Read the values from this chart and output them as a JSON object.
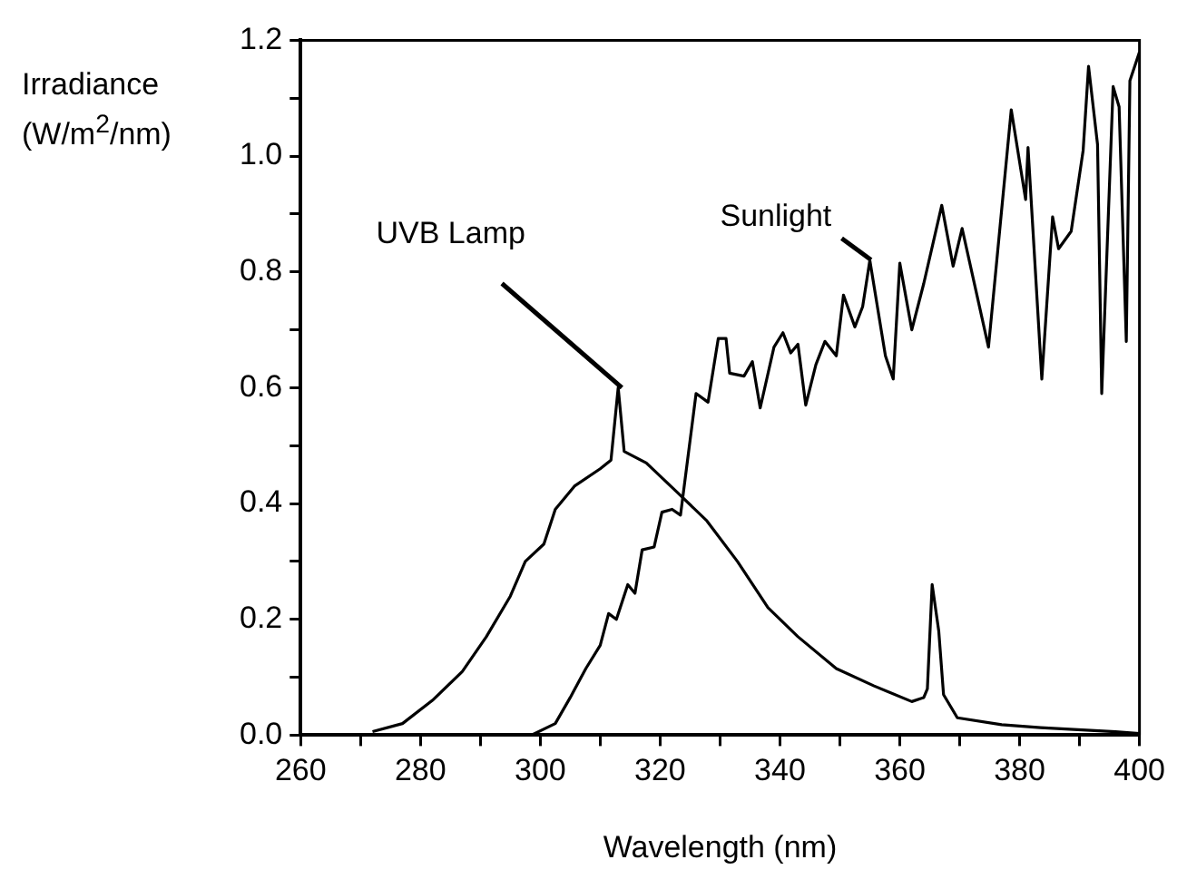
{
  "chart_data": {
    "type": "line",
    "xlabel": "Wavelength (nm)",
    "ylabel": "Irradiance (W/m$^{2}$/nm)",
    "xlim": [
      260,
      400
    ],
    "ylim": [
      0,
      1.2
    ],
    "xticks": [
      260,
      {
        "value": 270,
        "label": null
      },
      280,
      {
        "value": 290,
        "label": null
      },
      300,
      {
        "value": 310,
        "label": null
      },
      320,
      {
        "value": 330,
        "label": null
      },
      340,
      {
        "value": 350,
        "label": null
      },
      360,
      {
        "value": 370,
        "label": null
      },
      380,
      {
        "value": 390,
        "label": null
      },
      400
    ],
    "yticks": [
      {
        "value": 0,
        "label": "0.0"
      },
      {
        "value": 0.1,
        "label": null
      },
      0.2,
      {
        "value": 0.3,
        "label": null
      },
      0.4,
      {
        "value": 0.5,
        "label": null
      },
      0.6,
      {
        "value": 0.7,
        "label": null
      },
      0.8,
      {
        "value": 0.9,
        "label": null
      },
      {
        "value": 1,
        "label": "1.0"
      },
      {
        "value": 1.1,
        "label": null
      },
      1.2
    ],
    "grid": false,
    "legend": false,
    "marker": "none",
    "line_style": "solid",
    "series": [
      {
        "name": "UVB Lamp",
        "color": "#000000",
        "x": [
          272,
          277,
          282,
          287,
          291,
          295,
          297.5,
          300.6,
          302.5,
          305.7,
          310,
          311.8,
          313,
          314,
          317.7,
          322.8,
          327.8,
          332.9,
          338,
          343,
          349.4,
          355.7,
          362,
          364,
          364.6,
          365.4,
          366.5,
          367.3,
          369.6,
          377,
          383.5,
          396,
          400
        ],
        "values": [
          0.006,
          0.02,
          0.06,
          0.11,
          0.17,
          0.24,
          0.3,
          0.33,
          0.39,
          0.43,
          0.46,
          0.475,
          0.6,
          0.49,
          0.47,
          0.42,
          0.37,
          0.3,
          0.22,
          0.17,
          0.115,
          0.085,
          0.058,
          0.065,
          0.08,
          0.26,
          0.18,
          0.07,
          0.03,
          0.018,
          0.013,
          0.006,
          0.003
        ]
      },
      {
        "name": "Sunlight",
        "color": "#000000",
        "x": [
          298.5,
          302.5,
          305,
          307.6,
          310,
          311.4,
          312.7,
          314.6,
          315.8,
          317,
          319,
          320.3,
          322,
          323.4,
          326,
          328,
          329.7,
          331,
          331.6,
          334,
          335.4,
          336.7,
          339,
          340.5,
          341.8,
          343,
          344.3,
          346,
          347.5,
          349.4,
          350.6,
          352.5,
          353.8,
          355,
          357.6,
          358.9,
          360,
          362,
          364,
          367,
          368.9,
          370.4,
          374.8,
          378.6,
          381,
          381.4,
          383.7,
          385.5,
          386.5,
          388.6,
          390.6,
          391.5,
          393,
          393.7,
          395.6,
          396.6,
          397.8,
          398.4,
          400
        ],
        "values": [
          0,
          0.02,
          0.065,
          0.115,
          0.155,
          0.21,
          0.2,
          0.26,
          0.245,
          0.32,
          0.325,
          0.385,
          0.39,
          0.38,
          0.59,
          0.575,
          0.685,
          0.685,
          0.625,
          0.62,
          0.645,
          0.565,
          0.67,
          0.695,
          0.66,
          0.675,
          0.57,
          0.64,
          0.68,
          0.655,
          0.76,
          0.705,
          0.74,
          0.82,
          0.655,
          0.615,
          0.815,
          0.7,
          0.78,
          0.915,
          0.81,
          0.875,
          0.67,
          1.08,
          0.925,
          1.015,
          0.615,
          0.895,
          0.84,
          0.87,
          1.01,
          1.155,
          1.02,
          0.59,
          1.12,
          1.085,
          0.68,
          1.13,
          1.18
        ]
      }
    ]
  }
}
